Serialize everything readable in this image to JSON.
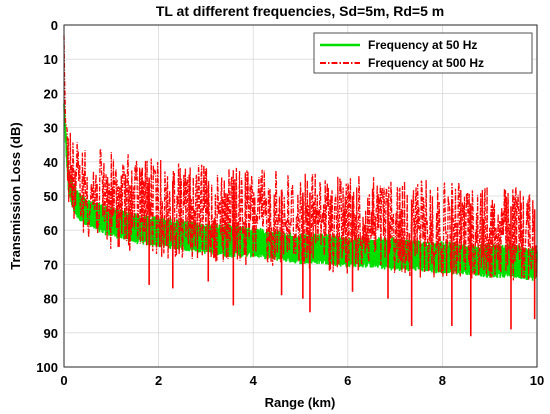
{
  "chart_data": {
    "type": "line",
    "title": "TL at different frequencies, Sd=5m, Rd=5 m",
    "xlabel": "Range (km)",
    "ylabel": "Transmission Loss (dB)",
    "xlim": [
      0,
      10
    ],
    "ylim": [
      0,
      100
    ],
    "y_reversed": true,
    "grid": true,
    "legend_position": "top-right",
    "x_ticks": [
      0,
      2,
      4,
      6,
      8,
      10
    ],
    "x_tick_labels": [
      "0",
      "2",
      "4",
      "6",
      "8",
      "10"
    ],
    "y_ticks": [
      0,
      10,
      20,
      30,
      40,
      50,
      60,
      70,
      80,
      90,
      100
    ],
    "y_tick_labels": [
      "0",
      "10",
      "20",
      "30",
      "40",
      "50",
      "60",
      "70",
      "80",
      "90",
      "100"
    ],
    "series": [
      {
        "name": "Frequency at 50 Hz",
        "color": "#00e000",
        "line_style": "solid",
        "x": [
          0.0,
          0.05,
          0.1,
          0.2,
          0.3,
          0.5,
          0.75,
          1.0,
          1.5,
          2.0,
          2.5,
          3.0,
          3.5,
          4.0,
          4.5,
          5.0,
          5.5,
          6.0,
          6.5,
          7.0,
          7.5,
          8.0,
          8.5,
          9.0,
          9.5,
          10.0
        ],
        "y_upper": [
          22,
          33,
          42,
          46,
          48,
          51,
          52,
          53,
          55,
          56,
          57,
          58,
          58,
          59,
          60,
          61,
          61,
          62,
          62,
          62,
          63,
          63,
          64,
          64,
          64,
          65
        ],
        "y_lower": [
          24,
          40,
          50,
          55,
          57,
          59,
          61,
          62,
          64,
          65,
          66,
          67,
          68,
          68,
          69,
          70,
          70,
          71,
          71,
          72,
          72,
          73,
          73,
          74,
          74,
          75
        ]
      },
      {
        "name": "Frequency at 500 Hz",
        "color": "#ff0000",
        "line_style": "dash-dot",
        "x": [
          0.0,
          0.05,
          0.1,
          0.2,
          0.3,
          0.5,
          0.75,
          1.0,
          1.5,
          2.0,
          2.5,
          3.0,
          3.5,
          4.0,
          4.5,
          5.0,
          5.5,
          6.0,
          6.5,
          7.0,
          7.5,
          8.0,
          8.5,
          9.0,
          9.5,
          10.0
        ],
        "y_upper": [
          0,
          25,
          30,
          33,
          34,
          35,
          36,
          37,
          38,
          39,
          40,
          41,
          41,
          42,
          42,
          43,
          43,
          44,
          44,
          45,
          45,
          46,
          46,
          47,
          47,
          48
        ],
        "y_lower": [
          10,
          42,
          52,
          58,
          60,
          62,
          64,
          66,
          67,
          68,
          69,
          70,
          70,
          71,
          71,
          72,
          72,
          73,
          73,
          73,
          74,
          74,
          74,
          75,
          75,
          75
        ],
        "deep_nulls": [
          {
            "x": 3.58,
            "y": 82
          },
          {
            "x": 3.05,
            "y": 75
          },
          {
            "x": 5.05,
            "y": 80
          },
          {
            "x": 5.2,
            "y": 84
          },
          {
            "x": 7.35,
            "y": 88
          },
          {
            "x": 8.2,
            "y": 88
          },
          {
            "x": 8.6,
            "y": 91
          },
          {
            "x": 9.45,
            "y": 89
          },
          {
            "x": 9.95,
            "y": 86
          },
          {
            "x": 1.8,
            "y": 76
          },
          {
            "x": 2.3,
            "y": 77
          },
          {
            "x": 4.6,
            "y": 79
          },
          {
            "x": 6.1,
            "y": 78
          },
          {
            "x": 6.85,
            "y": 80
          }
        ]
      }
    ]
  }
}
